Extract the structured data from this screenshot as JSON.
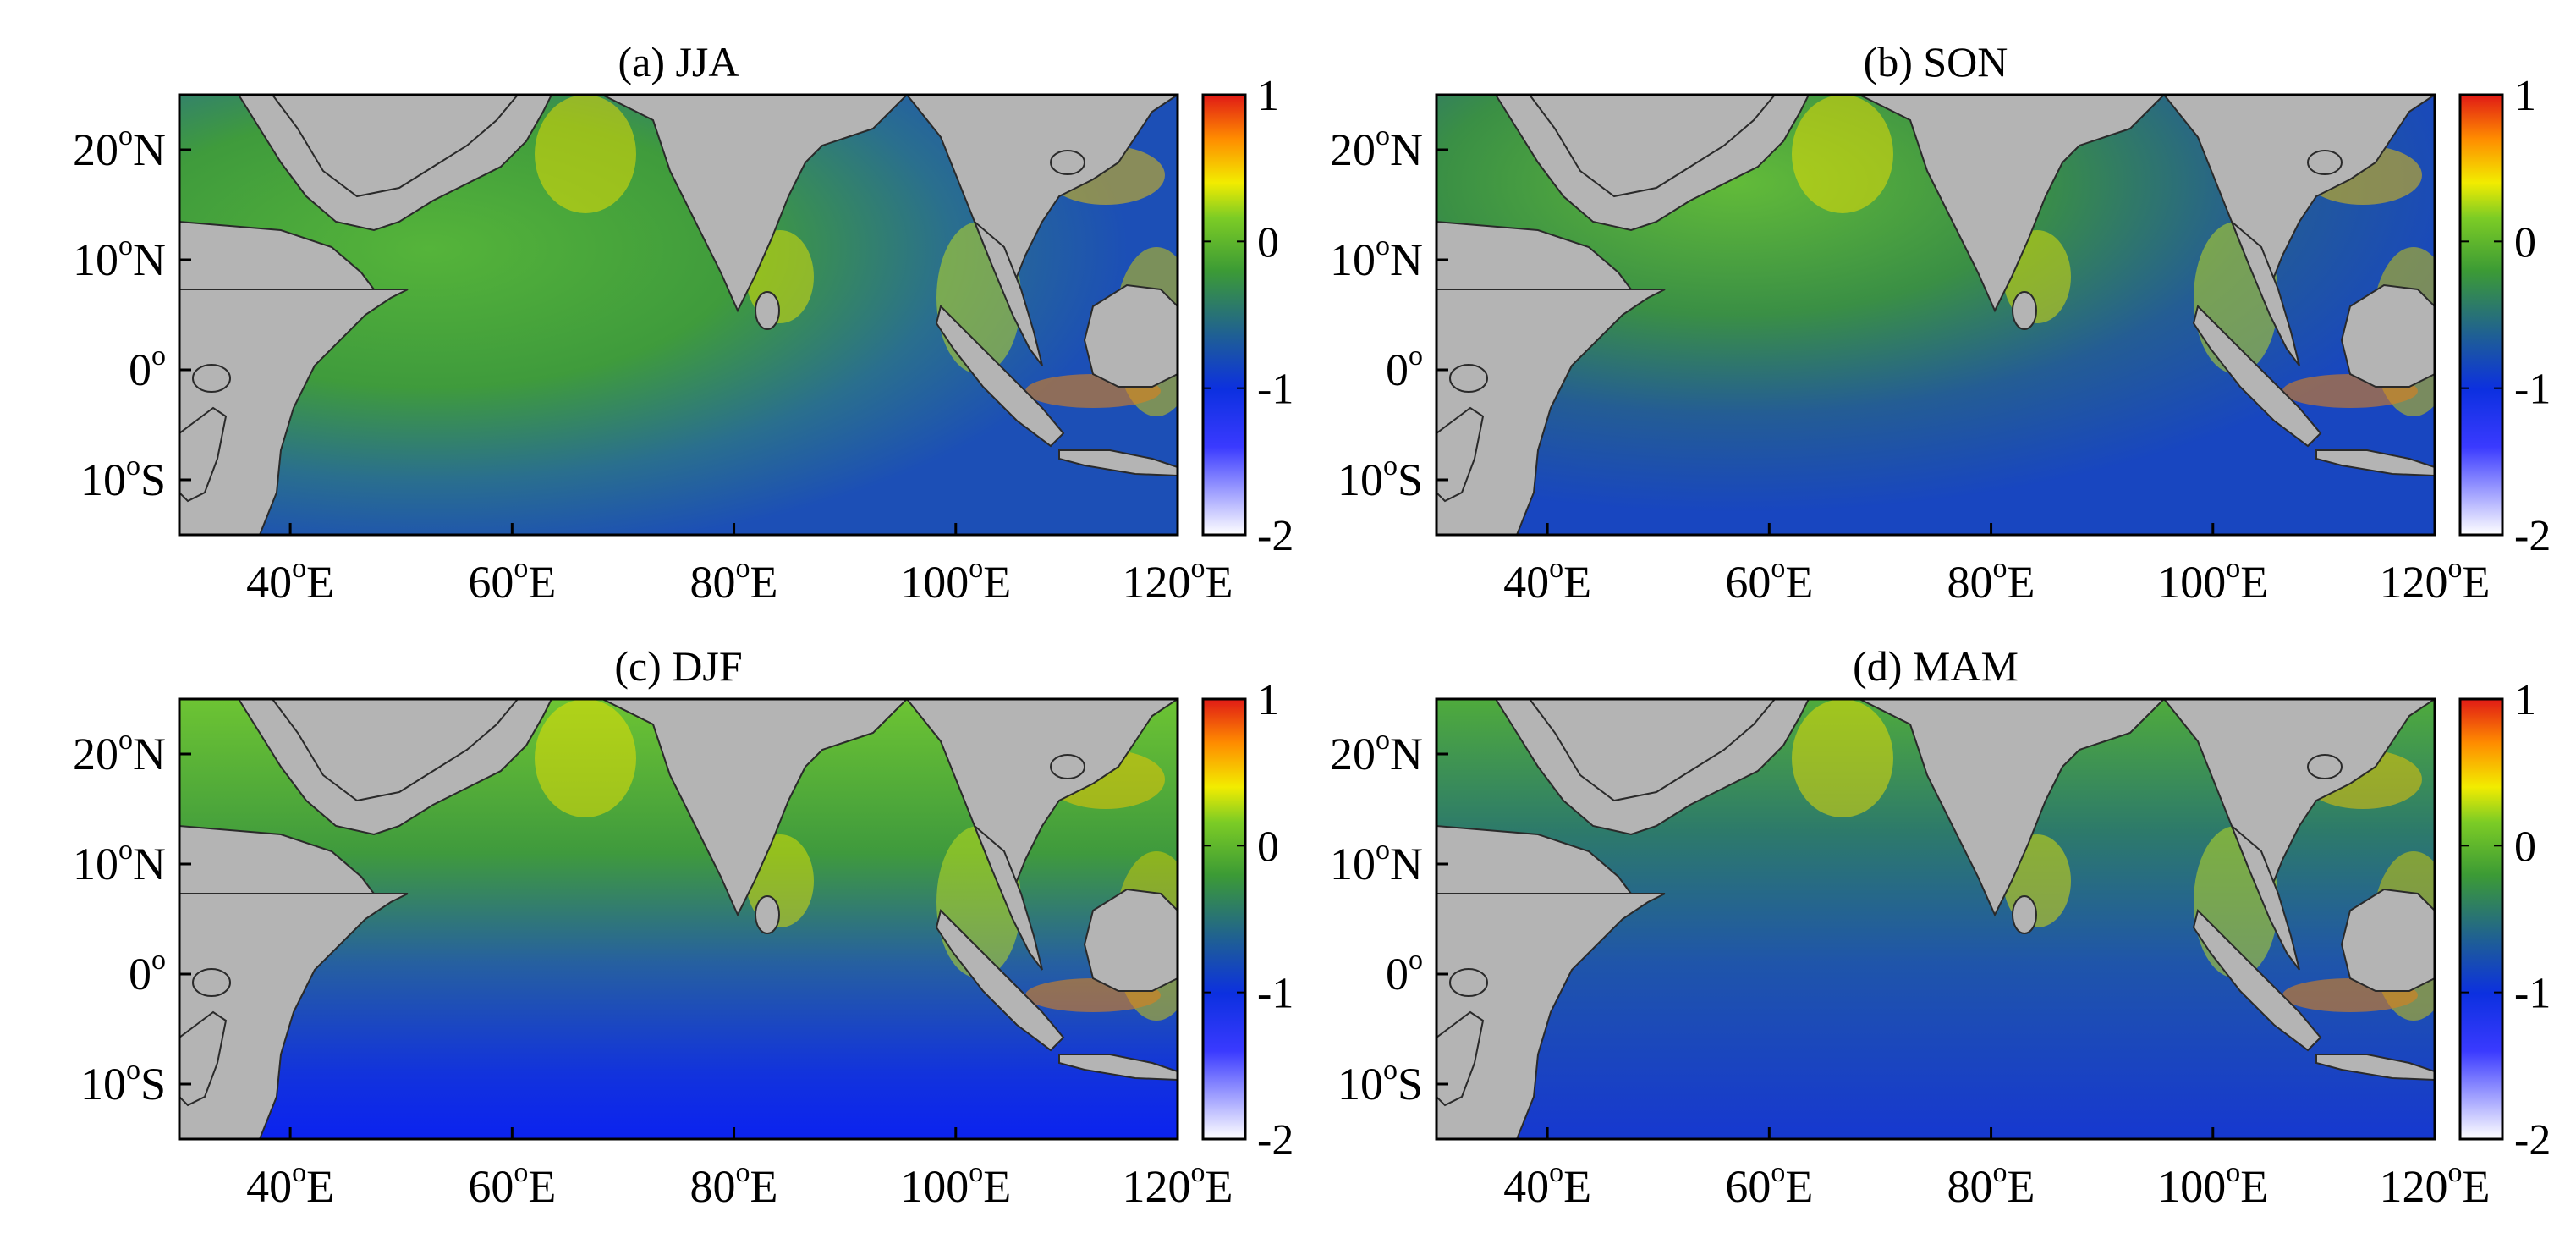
{
  "figure": {
    "panels": [
      {
        "id": "a",
        "title": "(a) JJA"
      },
      {
        "id": "b",
        "title": "(b) SON"
      },
      {
        "id": "c",
        "title": "(c) DJF"
      },
      {
        "id": "d",
        "title": "(d) MAM"
      }
    ],
    "lat_ticks": [
      {
        "deg": "20",
        "hemi": "N"
      },
      {
        "deg": "10",
        "hemi": "N"
      },
      {
        "deg": "0",
        "hemi": ""
      },
      {
        "deg": "10",
        "hemi": "S"
      }
    ],
    "lon_ticks": [
      {
        "deg": "40",
        "hemi": "E"
      },
      {
        "deg": "60",
        "hemi": "E"
      },
      {
        "deg": "80",
        "hemi": "E"
      },
      {
        "deg": "100",
        "hemi": "E"
      },
      {
        "deg": "120",
        "hemi": "E"
      }
    ],
    "degree_symbol": "o",
    "colorbar": {
      "ticks": [
        "1",
        "0",
        "-1",
        "-2"
      ],
      "range": [
        -2,
        1
      ],
      "colors": [
        "#ffffff",
        "#0000ff",
        "#1e5ea0",
        "#3d9b36",
        "#f5f000",
        "#ff8a00",
        "#e0201a"
      ]
    },
    "map_extent": {
      "lon": [
        30,
        120
      ],
      "lat": [
        -15,
        25
      ]
    },
    "colors": {
      "land": "#b4b4b4",
      "coast": "#2a2a2a"
    }
  }
}
